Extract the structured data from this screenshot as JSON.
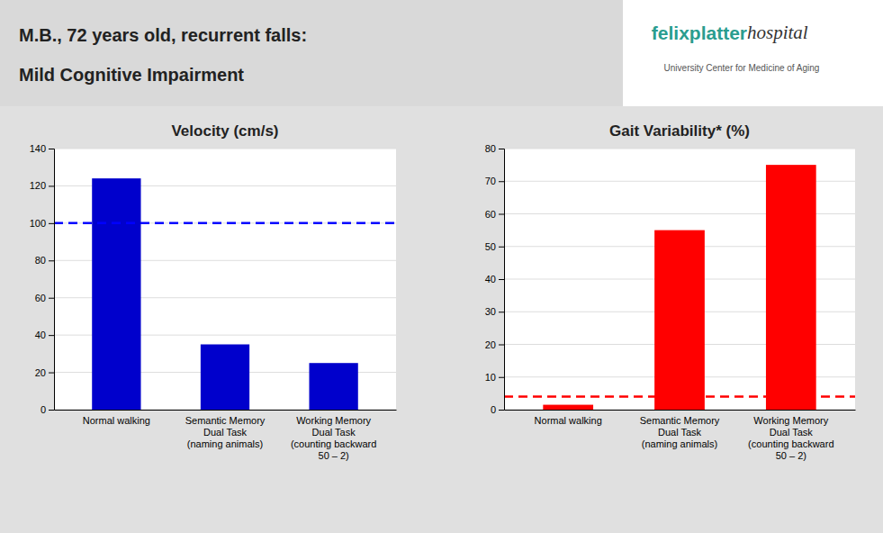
{
  "title": "M.B., 72 years old, recurrent falls:",
  "subtitle": "Mild Cognitive Impairment",
  "annotations": [
    {
      "text": "felixplatter",
      "color": "#2a9d8f"
    },
    {
      "text": "hospital"
    },
    {
      "text": "University Center for Medicine of Aging"
    }
  ],
  "chart_data": [
    {
      "type": "bar",
      "title": "Velocity (cm/s)",
      "categories": [
        "Normal walking",
        "Semantic Memory\nDual Task\n(naming animals)",
        "Working Memory\nDual Task\n(counting backward\n50 – 2)"
      ],
      "values": [
        124,
        35,
        25
      ],
      "color": "#0000cc",
      "reference": {
        "value": 100,
        "color": "#0000ff",
        "line_style": "dashed"
      },
      "ylim": [
        0,
        140
      ],
      "yticks": [
        0,
        20,
        40,
        60,
        80,
        100,
        120,
        140
      ],
      "grid": true
    },
    {
      "type": "bar",
      "title": "Gait Variability* (%)",
      "categories": [
        "Normal walking",
        "Semantic Memory\nDual Task\n(naming animals)",
        "Working Memory\nDual Task\n(counting backward\n50 – 2)"
      ],
      "values": [
        1.5,
        55,
        75
      ],
      "color": "#ff0000",
      "reference": {
        "value": 4,
        "color": "#ff0000",
        "line_style": "dashed"
      },
      "ylim": [
        0,
        80
      ],
      "yticks": [
        0,
        10,
        20,
        30,
        40,
        50,
        60,
        70,
        80
      ],
      "grid": true
    }
  ]
}
